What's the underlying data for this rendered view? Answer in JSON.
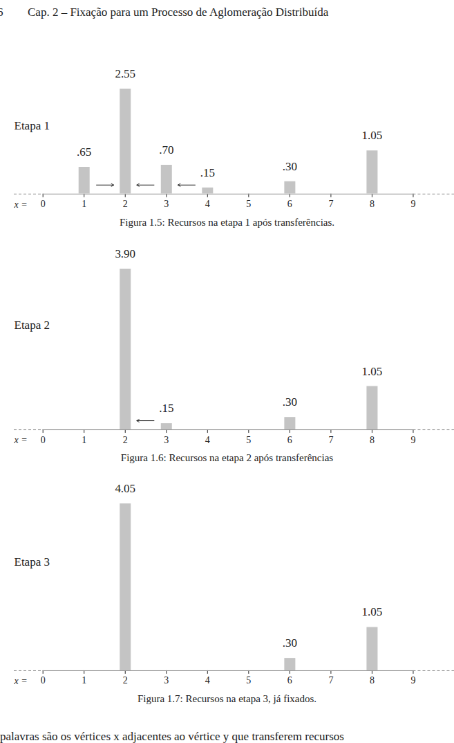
{
  "header": {
    "page": "6",
    "title": "Cap. 2 – Fixação para um Processo de Aglomeração Distribuída"
  },
  "chart_data": [
    {
      "type": "bar",
      "title": "Etapa 1",
      "x": [
        1,
        2,
        3,
        4,
        6,
        8
      ],
      "values": [
        0.65,
        2.55,
        0.7,
        0.15,
        0.3,
        1.05
      ],
      "value_labels": [
        ".65",
        "2.55",
        ".70",
        ".15",
        ".30",
        "1.05"
      ],
      "data_labels": true,
      "color": "#c4c4c4",
      "xlabel": "x =",
      "xlim": [
        -0.7,
        10
      ],
      "xticks": [
        0,
        1,
        2,
        3,
        4,
        5,
        6,
        7,
        8,
        9
      ],
      "ylim": [
        0,
        2.55
      ],
      "tick_labels": "x",
      "transfers": [
        {
          "from": 1,
          "to": 2
        },
        {
          "from": 3,
          "to": 2
        },
        {
          "from": 4,
          "to": 3
        }
      ],
      "caption": "Figura 1.5: Recursos na etapa 1 após transferências."
    },
    {
      "type": "bar",
      "title": "Etapa 2",
      "x": [
        2,
        3,
        6,
        8
      ],
      "values": [
        3.9,
        0.15,
        0.3,
        1.05
      ],
      "value_labels": [
        "3.90",
        ".15",
        ".30",
        "1.05"
      ],
      "data_labels": true,
      "color": "#c4c4c4",
      "xlabel": "x =",
      "xlim": [
        -0.7,
        10
      ],
      "xticks": [
        0,
        1,
        2,
        3,
        4,
        5,
        6,
        7,
        8,
        9
      ],
      "ylim": [
        0,
        3.9
      ],
      "tick_labels": "x",
      "transfers": [
        {
          "from": 3,
          "to": 2
        }
      ],
      "caption": "Figura 1.6: Recursos na etapa 2 após transferências"
    },
    {
      "type": "bar",
      "title": "Etapa 3",
      "x": [
        2,
        6,
        8
      ],
      "values": [
        4.05,
        0.3,
        1.05
      ],
      "value_labels": [
        "4.05",
        ".30",
        "1.05"
      ],
      "data_labels": true,
      "color": "#c4c4c4",
      "xlabel": "x =",
      "xlim": [
        -0.7,
        10
      ],
      "xticks": [
        0,
        1,
        2,
        3,
        4,
        5,
        6,
        7,
        8,
        9
      ],
      "ylim": [
        0,
        4.05
      ],
      "tick_labels": "x",
      "transfers": [],
      "caption": "Figura 1.7: Recursos na etapa 3, já fixados."
    }
  ],
  "body_text": "palavras são os vértices x adjacentes ao vértice y que transferem recursos"
}
